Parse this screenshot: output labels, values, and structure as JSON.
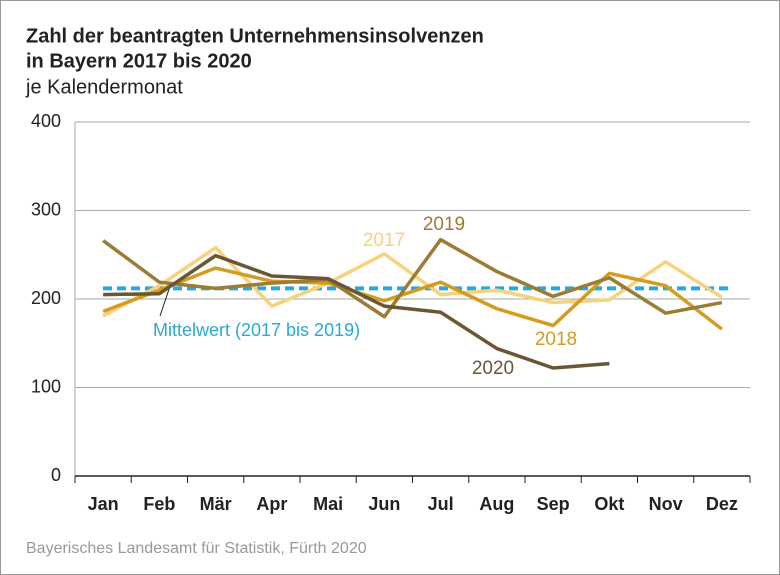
{
  "chart_data": {
    "type": "line",
    "title": "Zahl der beantragten Unternehmensinsolvenzen",
    "title_line2": "in Bayern 2017 bis 2020",
    "subtitle": "je Kalendermonat",
    "source": "Bayerisches Landesamt für Statistik, Fürth 2020",
    "categories": [
      "Jan",
      "Feb",
      "Mär",
      "Apr",
      "Mai",
      "Jun",
      "Jul",
      "Aug",
      "Sep",
      "Okt",
      "Nov",
      "Dez"
    ],
    "series": [
      {
        "name": "2017",
        "color": "#f7d27c",
        "values": [
          181,
          215,
          258,
          192,
          218,
          251,
          205,
          210,
          196,
          199,
          242,
          202
        ]
      },
      {
        "name": "2018",
        "color": "#d39c1e",
        "values": [
          186,
          210,
          235,
          220,
          218,
          198,
          219,
          189,
          170,
          229,
          215,
          166
        ]
      },
      {
        "name": "2019",
        "color": "#9c7b33",
        "values": [
          266,
          219,
          212,
          218,
          222,
          180,
          267,
          231,
          203,
          224,
          184,
          196
        ]
      },
      {
        "name": "2020",
        "color": "#6b5633",
        "values": [
          205,
          206,
          249,
          226,
          223,
          192,
          185,
          144,
          122,
          127,
          null,
          null
        ]
      }
    ],
    "mean": {
      "label": "Mittelwert (2017 bis 2019)",
      "value": 212,
      "color": "#2aa9d8"
    },
    "ylim": [
      0,
      400
    ],
    "yticks": [
      0,
      100,
      200,
      300,
      400
    ],
    "grid": true
  }
}
